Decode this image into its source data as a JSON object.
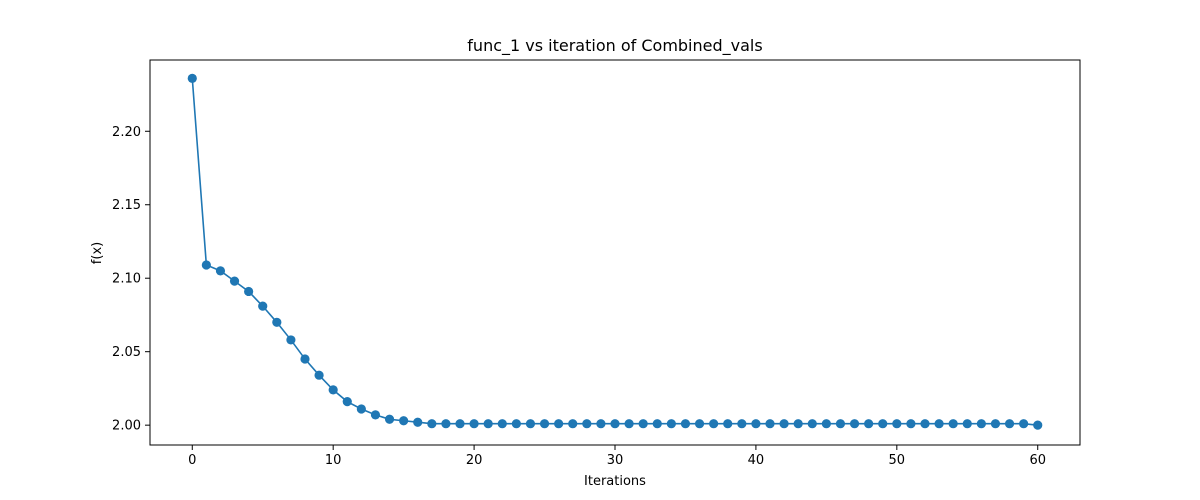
{
  "chart_data": {
    "type": "line",
    "title": "func_1 vs iteration of Combined_vals",
    "xlabel": "Iterations",
    "ylabel": "f(x)",
    "xlim": [
      -3,
      63
    ],
    "ylim": [
      1.9865,
      2.2485
    ],
    "xticks": [
      0,
      10,
      20,
      30,
      40,
      50,
      60
    ],
    "yticks": [
      2.0,
      2.05,
      2.1,
      2.15,
      2.2
    ],
    "xtick_labels": [
      "0",
      "10",
      "20",
      "30",
      "40",
      "50",
      "60"
    ],
    "ytick_labels": [
      "2.00",
      "2.05",
      "2.10",
      "2.15",
      "2.20"
    ],
    "grid": false,
    "series": [
      {
        "color": "#1f77b4",
        "marker": "circle",
        "x": [
          0,
          1,
          2,
          3,
          4,
          5,
          6,
          7,
          8,
          9,
          10,
          11,
          12,
          13,
          14,
          15,
          16,
          17,
          18,
          19,
          20,
          21,
          22,
          23,
          24,
          25,
          26,
          27,
          28,
          29,
          30,
          31,
          32,
          33,
          34,
          35,
          36,
          37,
          38,
          39,
          40,
          41,
          42,
          43,
          44,
          45,
          46,
          47,
          48,
          49,
          50,
          51,
          52,
          53,
          54,
          55,
          56,
          57,
          58,
          59,
          60
        ],
        "y": [
          2.236,
          2.109,
          2.105,
          2.098,
          2.091,
          2.081,
          2.07,
          2.058,
          2.045,
          2.034,
          2.024,
          2.016,
          2.011,
          2.007,
          2.004,
          2.003,
          2.002,
          2.001,
          2.001,
          2.001,
          2.001,
          2.001,
          2.001,
          2.001,
          2.001,
          2.001,
          2.001,
          2.001,
          2.001,
          2.001,
          2.001,
          2.001,
          2.001,
          2.001,
          2.001,
          2.001,
          2.001,
          2.001,
          2.001,
          2.001,
          2.001,
          2.001,
          2.001,
          2.001,
          2.001,
          2.001,
          2.001,
          2.001,
          2.001,
          2.001,
          2.001,
          2.001,
          2.001,
          2.001,
          2.001,
          2.001,
          2.001,
          2.001,
          2.001,
          2.001,
          2.0
        ]
      }
    ]
  }
}
